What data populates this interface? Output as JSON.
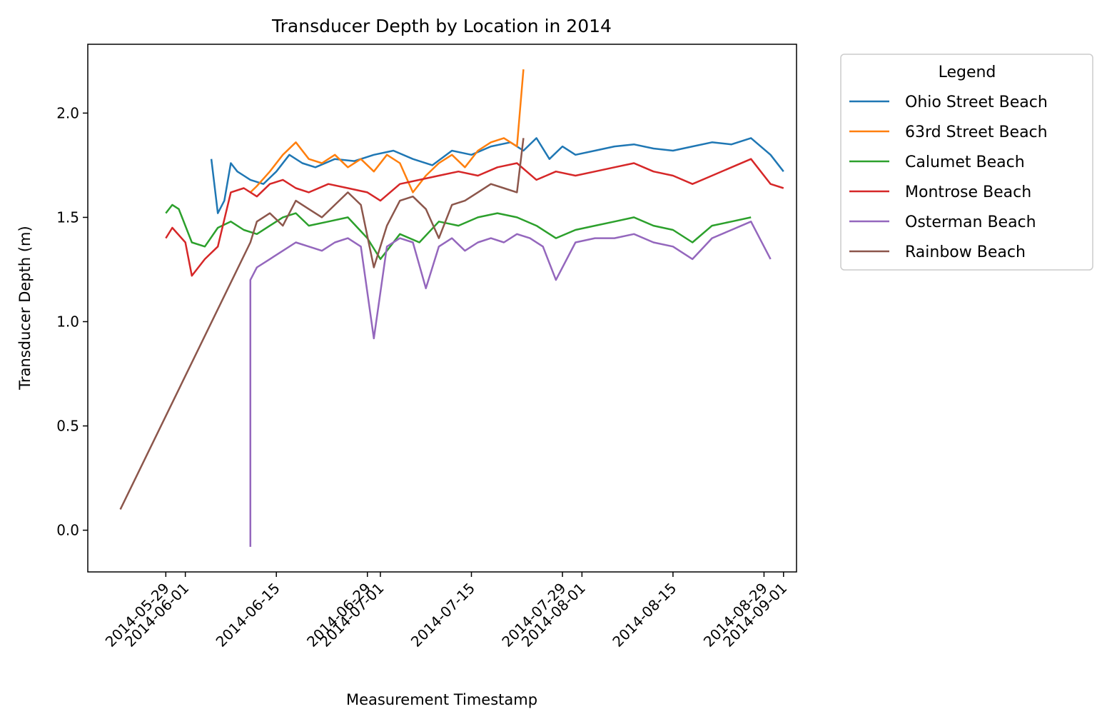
{
  "chart_data": {
    "type": "line",
    "title": "Transducer Depth by Location in 2014",
    "xlabel": "Measurement Timestamp",
    "ylabel": "Transducer Depth (m)",
    "x_type": "date",
    "xlim": [
      "2014-05-17",
      "2014-09-03"
    ],
    "ylim": [
      -0.2,
      2.33
    ],
    "y_ticks": [
      0.0,
      0.5,
      1.0,
      1.5,
      2.0
    ],
    "y_tick_labels": [
      "0.0",
      "0.5",
      "1.0",
      "1.5",
      "2.0"
    ],
    "x_ticks": [
      "2014-05-29",
      "2014-06-01",
      "2014-06-15",
      "2014-06-29",
      "2014-07-01",
      "2014-07-15",
      "2014-07-29",
      "2014-08-01",
      "2014-08-15",
      "2014-08-29",
      "2014-09-01"
    ],
    "x_tick_labels": [
      "2014-05-29",
      "2014-06-01",
      "2014-06-15",
      "2014-06-29",
      "2014-07-01",
      "2014-07-15",
      "2014-07-29",
      "2014-08-01",
      "2014-08-15",
      "2014-08-29",
      "2014-09-01"
    ],
    "grid": false,
    "legend": {
      "title": "Legend",
      "placement": "outside upper-right"
    },
    "series": [
      {
        "name": "Ohio Street Beach",
        "color": "#1f77b4",
        "x": [
          "2014-06-05",
          "2014-06-06",
          "2014-06-07",
          "2014-06-08",
          "2014-06-09",
          "2014-06-10",
          "2014-06-11",
          "2014-06-13",
          "2014-06-15",
          "2014-06-17",
          "2014-06-19",
          "2014-06-21",
          "2014-06-24",
          "2014-06-27",
          "2014-06-30",
          "2014-07-03",
          "2014-07-06",
          "2014-07-09",
          "2014-07-12",
          "2014-07-15",
          "2014-07-18",
          "2014-07-21",
          "2014-07-23",
          "2014-07-25",
          "2014-07-27",
          "2014-07-29",
          "2014-07-31",
          "2014-08-03",
          "2014-08-06",
          "2014-08-09",
          "2014-08-12",
          "2014-08-15",
          "2014-08-18",
          "2014-08-21",
          "2014-08-24",
          "2014-08-27",
          "2014-08-30",
          "2014-09-01"
        ],
        "y": [
          1.78,
          1.52,
          1.58,
          1.76,
          1.72,
          1.7,
          1.68,
          1.66,
          1.72,
          1.8,
          1.76,
          1.74,
          1.78,
          1.77,
          1.8,
          1.82,
          1.78,
          1.75,
          1.82,
          1.8,
          1.84,
          1.86,
          1.82,
          1.88,
          1.78,
          1.84,
          1.8,
          1.82,
          1.84,
          1.85,
          1.83,
          1.82,
          1.84,
          1.86,
          1.85,
          1.88,
          1.8,
          1.72
        ]
      },
      {
        "name": "63rd Street Beach",
        "color": "#ff7f0e",
        "x": [
          "2014-06-11",
          "2014-06-12",
          "2014-06-14",
          "2014-06-16",
          "2014-06-18",
          "2014-06-20",
          "2014-06-22",
          "2014-06-24",
          "2014-06-26",
          "2014-06-28",
          "2014-06-30",
          "2014-07-02",
          "2014-07-04",
          "2014-07-06",
          "2014-07-08",
          "2014-07-10",
          "2014-07-12",
          "2014-07-14",
          "2014-07-16",
          "2014-07-18",
          "2014-07-20",
          "2014-07-22",
          "2014-07-23"
        ],
        "y": [
          1.62,
          1.65,
          1.72,
          1.8,
          1.86,
          1.78,
          1.76,
          1.8,
          1.74,
          1.78,
          1.72,
          1.8,
          1.76,
          1.62,
          1.7,
          1.76,
          1.8,
          1.74,
          1.82,
          1.86,
          1.88,
          1.84,
          2.21
        ]
      },
      {
        "name": "Calumet Beach",
        "color": "#2ca02c",
        "x": [
          "2014-05-29",
          "2014-05-30",
          "2014-05-31",
          "2014-06-02",
          "2014-06-04",
          "2014-06-06",
          "2014-06-08",
          "2014-06-10",
          "2014-06-12",
          "2014-06-14",
          "2014-06-16",
          "2014-06-18",
          "2014-06-20",
          "2014-06-23",
          "2014-06-26",
          "2014-06-29",
          "2014-07-01",
          "2014-07-04",
          "2014-07-07",
          "2014-07-10",
          "2014-07-13",
          "2014-07-16",
          "2014-07-19",
          "2014-07-22",
          "2014-07-25",
          "2014-07-28",
          "2014-07-31",
          "2014-08-03",
          "2014-08-06",
          "2014-08-09",
          "2014-08-12",
          "2014-08-15",
          "2014-08-18",
          "2014-08-21",
          "2014-08-24",
          "2014-08-27"
        ],
        "y": [
          1.52,
          1.56,
          1.54,
          1.38,
          1.36,
          1.45,
          1.48,
          1.44,
          1.42,
          1.46,
          1.5,
          1.52,
          1.46,
          1.48,
          1.5,
          1.4,
          1.3,
          1.42,
          1.38,
          1.48,
          1.46,
          1.5,
          1.52,
          1.5,
          1.46,
          1.4,
          1.44,
          1.46,
          1.48,
          1.5,
          1.46,
          1.44,
          1.38,
          1.46,
          1.48,
          1.5
        ]
      },
      {
        "name": "Montrose Beach",
        "color": "#d62728",
        "x": [
          "2014-05-29",
          "2014-05-30",
          "2014-06-01",
          "2014-06-02",
          "2014-06-04",
          "2014-06-06",
          "2014-06-08",
          "2014-06-10",
          "2014-06-12",
          "2014-06-14",
          "2014-06-16",
          "2014-06-18",
          "2014-06-20",
          "2014-06-23",
          "2014-06-26",
          "2014-06-29",
          "2014-07-01",
          "2014-07-04",
          "2014-07-07",
          "2014-07-10",
          "2014-07-13",
          "2014-07-16",
          "2014-07-19",
          "2014-07-22",
          "2014-07-25",
          "2014-07-28",
          "2014-07-31",
          "2014-08-03",
          "2014-08-06",
          "2014-08-09",
          "2014-08-12",
          "2014-08-15",
          "2014-08-18",
          "2014-08-21",
          "2014-08-24",
          "2014-08-27",
          "2014-08-30",
          "2014-09-01"
        ],
        "y": [
          1.4,
          1.45,
          1.38,
          1.22,
          1.3,
          1.36,
          1.62,
          1.64,
          1.6,
          1.66,
          1.68,
          1.64,
          1.62,
          1.66,
          1.64,
          1.62,
          1.58,
          1.66,
          1.68,
          1.7,
          1.72,
          1.7,
          1.74,
          1.76,
          1.68,
          1.72,
          1.7,
          1.72,
          1.74,
          1.76,
          1.72,
          1.7,
          1.66,
          1.7,
          1.74,
          1.78,
          1.66,
          1.64
        ]
      },
      {
        "name": "Osterman Beach",
        "color": "#9467bd",
        "x": [
          "2014-06-11",
          "2014-06-11",
          "2014-06-12",
          "2014-06-14",
          "2014-06-16",
          "2014-06-18",
          "2014-06-20",
          "2014-06-22",
          "2014-06-24",
          "2014-06-26",
          "2014-06-28",
          "2014-06-30",
          "2014-07-02",
          "2014-07-04",
          "2014-07-06",
          "2014-07-08",
          "2014-07-10",
          "2014-07-12",
          "2014-07-14",
          "2014-07-16",
          "2014-07-18",
          "2014-07-20",
          "2014-07-22",
          "2014-07-24",
          "2014-07-26",
          "2014-07-28",
          "2014-07-31",
          "2014-08-03",
          "2014-08-06",
          "2014-08-09",
          "2014-08-12",
          "2014-08-15",
          "2014-08-18",
          "2014-08-21",
          "2014-08-24",
          "2014-08-27",
          "2014-08-30"
        ],
        "y": [
          -0.08,
          1.2,
          1.26,
          1.3,
          1.34,
          1.38,
          1.36,
          1.34,
          1.38,
          1.4,
          1.36,
          0.92,
          1.36,
          1.4,
          1.38,
          1.16,
          1.36,
          1.4,
          1.34,
          1.38,
          1.4,
          1.38,
          1.42,
          1.4,
          1.36,
          1.2,
          1.38,
          1.4,
          1.4,
          1.42,
          1.38,
          1.36,
          1.3,
          1.4,
          1.44,
          1.48,
          1.3
        ]
      },
      {
        "name": "Rainbow Beach",
        "color": "#8c564b",
        "x": [
          "2014-05-22",
          "2014-06-11",
          "2014-06-12",
          "2014-06-14",
          "2014-06-16",
          "2014-06-18",
          "2014-06-20",
          "2014-06-22",
          "2014-06-24",
          "2014-06-26",
          "2014-06-28",
          "2014-06-30",
          "2014-07-02",
          "2014-07-04",
          "2014-07-06",
          "2014-07-08",
          "2014-07-10",
          "2014-07-12",
          "2014-07-14",
          "2014-07-16",
          "2014-07-18",
          "2014-07-20",
          "2014-07-22",
          "2014-07-23"
        ],
        "y": [
          0.1,
          1.38,
          1.48,
          1.52,
          1.46,
          1.58,
          1.54,
          1.5,
          1.56,
          1.62,
          1.56,
          1.26,
          1.46,
          1.58,
          1.6,
          1.54,
          1.4,
          1.56,
          1.58,
          1.62,
          1.66,
          1.64,
          1.62,
          1.88
        ]
      }
    ]
  }
}
